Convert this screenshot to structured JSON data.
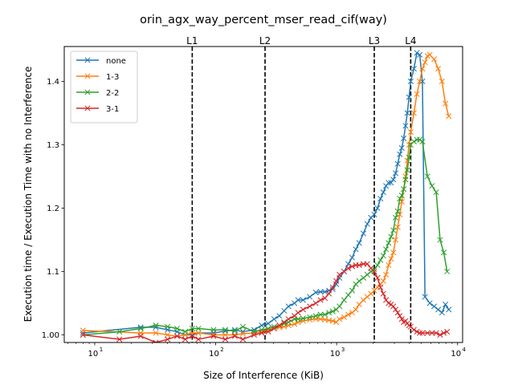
{
  "chart_data": {
    "type": "line",
    "title": "orin_agx_way_percent_mser_read_cif(way)",
    "xlabel": "Size of Interference (KiB)",
    "ylabel": "Execution time / Execution Time with no Interference",
    "xscale": "log",
    "xlim": [
      5.6,
      11000
    ],
    "ylim": [
      0.988,
      1.455
    ],
    "yticks": [
      1.0,
      1.1,
      1.2,
      1.3,
      1.4
    ],
    "ytick_labels": [
      "1.00",
      "1.1",
      "1.2",
      "1.3",
      "1.4"
    ],
    "xticks": [
      10,
      100,
      1000,
      10000
    ],
    "xtick_labels": [
      "10",
      "10",
      "10",
      "10"
    ],
    "xtick_exponents": [
      "1",
      "2",
      "3",
      "4"
    ],
    "grid": false,
    "legend_position": "upper-left",
    "vlines": [
      {
        "label": "L1",
        "x": 64
      },
      {
        "label": "L2",
        "x": 256
      },
      {
        "label": "L3",
        "x": 2048
      },
      {
        "label": "L4",
        "x": 4096
      }
    ],
    "series": [
      {
        "name": "none",
        "color": "#1f77b4",
        "points": [
          [
            8,
            1.003
          ],
          [
            24,
            1.012
          ],
          [
            32,
            1.012
          ],
          [
            40,
            1.008
          ],
          [
            48,
            1.005
          ],
          [
            56,
            1.0
          ],
          [
            64,
            1.0
          ],
          [
            72,
            1.003
          ],
          [
            96,
            1.003
          ],
          [
            120,
            1.006
          ],
          [
            144,
            1.008
          ],
          [
            168,
            1.005
          ],
          [
            208,
            1.008
          ],
          [
            240,
            1.015
          ],
          [
            272,
            1.018
          ],
          [
            304,
            1.025
          ],
          [
            336,
            1.03
          ],
          [
            368,
            1.038
          ],
          [
            400,
            1.045
          ],
          [
            448,
            1.05
          ],
          [
            480,
            1.055
          ],
          [
            528,
            1.055
          ],
          [
            600,
            1.06
          ],
          [
            672,
            1.067
          ],
          [
            736,
            1.068
          ],
          [
            800,
            1.068
          ],
          [
            864,
            1.07
          ],
          [
            928,
            1.072
          ],
          [
            992,
            1.08
          ],
          [
            1056,
            1.09
          ],
          [
            1152,
            1.1
          ],
          [
            1248,
            1.112
          ],
          [
            1344,
            1.122
          ],
          [
            1440,
            1.135
          ],
          [
            1536,
            1.145
          ],
          [
            1664,
            1.16
          ],
          [
            1792,
            1.175
          ],
          [
            1920,
            1.185
          ],
          [
            2048,
            1.19
          ],
          [
            2176,
            1.2
          ],
          [
            2304,
            1.215
          ],
          [
            2432,
            1.225
          ],
          [
            2560,
            1.235
          ],
          [
            2688,
            1.24
          ],
          [
            2816,
            1.24
          ],
          [
            2944,
            1.245
          ],
          [
            3072,
            1.255
          ],
          [
            3200,
            1.27
          ],
          [
            3328,
            1.285
          ],
          [
            3456,
            1.295
          ],
          [
            3584,
            1.31
          ],
          [
            3712,
            1.33
          ],
          [
            3840,
            1.35
          ],
          [
            3968,
            1.375
          ],
          [
            4096,
            1.4
          ],
          [
            4352,
            1.42
          ],
          [
            4608,
            1.445
          ],
          [
            4864,
            1.442
          ],
          [
            5120,
            1.4
          ],
          [
            5376,
            1.06
          ],
          [
            5888,
            1.05
          ],
          [
            6400,
            1.045
          ],
          [
            6912,
            1.04
          ],
          [
            7424,
            1.035
          ],
          [
            7936,
            1.048
          ],
          [
            8448,
            1.04
          ]
        ]
      },
      {
        "name": "1-3",
        "color": "#ff7f0e",
        "points": [
          [
            8,
            1.007
          ],
          [
            24,
            1.003
          ],
          [
            32,
            1.003
          ],
          [
            40,
            1.0
          ],
          [
            48,
            0.998
          ],
          [
            56,
            1.0
          ],
          [
            64,
            1.003
          ],
          [
            72,
            1.003
          ],
          [
            96,
            1.0
          ],
          [
            120,
            1.0
          ],
          [
            144,
            1.0
          ],
          [
            168,
            1.002
          ],
          [
            208,
            1.003
          ],
          [
            240,
            1.005
          ],
          [
            272,
            1.008
          ],
          [
            304,
            1.01
          ],
          [
            336,
            1.012
          ],
          [
            368,
            1.013
          ],
          [
            400,
            1.015
          ],
          [
            448,
            1.017
          ],
          [
            480,
            1.02
          ],
          [
            528,
            1.022
          ],
          [
            600,
            1.024
          ],
          [
            672,
            1.025
          ],
          [
            736,
            1.025
          ],
          [
            800,
            1.024
          ],
          [
            864,
            1.023
          ],
          [
            928,
            1.022
          ],
          [
            992,
            1.02
          ],
          [
            1056,
            1.025
          ],
          [
            1152,
            1.028
          ],
          [
            1248,
            1.032
          ],
          [
            1344,
            1.035
          ],
          [
            1440,
            1.04
          ],
          [
            1536,
            1.048
          ],
          [
            1664,
            1.055
          ],
          [
            1792,
            1.06
          ],
          [
            1920,
            1.065
          ],
          [
            2048,
            1.07
          ],
          [
            2176,
            1.075
          ],
          [
            2304,
            1.08
          ],
          [
            2432,
            1.085
          ],
          [
            2560,
            1.095
          ],
          [
            2688,
            1.11
          ],
          [
            2816,
            1.12
          ],
          [
            2944,
            1.13
          ],
          [
            3072,
            1.15
          ],
          [
            3200,
            1.17
          ],
          [
            3328,
            1.19
          ],
          [
            3456,
            1.21
          ],
          [
            3584,
            1.23
          ],
          [
            3712,
            1.25
          ],
          [
            3840,
            1.275
          ],
          [
            3968,
            1.3
          ],
          [
            4096,
            1.32
          ],
          [
            4352,
            1.35
          ],
          [
            4608,
            1.38
          ],
          [
            4864,
            1.4
          ],
          [
            5120,
            1.42
          ],
          [
            5376,
            1.43
          ],
          [
            5632,
            1.44
          ],
          [
            5888,
            1.442
          ],
          [
            6400,
            1.435
          ],
          [
            6912,
            1.42
          ],
          [
            7424,
            1.4
          ],
          [
            7936,
            1.365
          ],
          [
            8448,
            1.345
          ]
        ]
      },
      {
        "name": "2-2",
        "color": "#2ca02c",
        "points": [
          [
            8,
            1.0
          ],
          [
            16,
            1.005
          ],
          [
            24,
            1.01
          ],
          [
            32,
            1.015
          ],
          [
            40,
            1.013
          ],
          [
            48,
            1.01
          ],
          [
            56,
            1.005
          ],
          [
            64,
            1.01
          ],
          [
            72,
            1.01
          ],
          [
            96,
            1.008
          ],
          [
            120,
            1.008
          ],
          [
            144,
            1.006
          ],
          [
            168,
            1.013
          ],
          [
            208,
            1.005
          ],
          [
            240,
            1.008
          ],
          [
            272,
            1.01
          ],
          [
            304,
            1.013
          ],
          [
            336,
            1.015
          ],
          [
            368,
            1.018
          ],
          [
            400,
            1.02
          ],
          [
            448,
            1.025
          ],
          [
            480,
            1.025
          ],
          [
            528,
            1.026
          ],
          [
            600,
            1.028
          ],
          [
            672,
            1.03
          ],
          [
            736,
            1.032
          ],
          [
            800,
            1.032
          ],
          [
            864,
            1.035
          ],
          [
            928,
            1.037
          ],
          [
            992,
            1.04
          ],
          [
            1056,
            1.045
          ],
          [
            1152,
            1.055
          ],
          [
            1248,
            1.063
          ],
          [
            1344,
            1.07
          ],
          [
            1440,
            1.08
          ],
          [
            1536,
            1.085
          ],
          [
            1664,
            1.09
          ],
          [
            1792,
            1.095
          ],
          [
            1920,
            1.1
          ],
          [
            2048,
            1.103
          ],
          [
            2176,
            1.11
          ],
          [
            2304,
            1.118
          ],
          [
            2432,
            1.125
          ],
          [
            2560,
            1.135
          ],
          [
            2688,
            1.145
          ],
          [
            2816,
            1.155
          ],
          [
            2944,
            1.165
          ],
          [
            3072,
            1.185
          ],
          [
            3200,
            1.195
          ],
          [
            3328,
            1.215
          ],
          [
            3456,
            1.22
          ],
          [
            3584,
            1.23
          ],
          [
            3712,
            1.245
          ],
          [
            3840,
            1.26
          ],
          [
            3968,
            1.28
          ],
          [
            4096,
            1.3
          ],
          [
            4352,
            1.305
          ],
          [
            4608,
            1.308
          ],
          [
            4864,
            1.308
          ],
          [
            5120,
            1.305
          ],
          [
            5632,
            1.25
          ],
          [
            6144,
            1.235
          ],
          [
            6656,
            1.225
          ],
          [
            7168,
            1.15
          ],
          [
            7680,
            1.13
          ],
          [
            8192,
            1.1
          ]
        ]
      },
      {
        "name": "3-1",
        "color": "#d62728",
        "points": [
          [
            8,
            1.0
          ],
          [
            16,
            0.993
          ],
          [
            24,
            0.998
          ],
          [
            32,
            0.988
          ],
          [
            40,
            0.993
          ],
          [
            48,
            0.998
          ],
          [
            56,
            0.993
          ],
          [
            64,
            0.998
          ],
          [
            72,
            0.993
          ],
          [
            96,
            0.998
          ],
          [
            120,
            0.993
          ],
          [
            144,
            0.998
          ],
          [
            168,
            0.993
          ],
          [
            208,
            1.0
          ],
          [
            240,
            1.003
          ],
          [
            272,
            1.005
          ],
          [
            304,
            1.01
          ],
          [
            336,
            1.015
          ],
          [
            368,
            1.02
          ],
          [
            400,
            1.025
          ],
          [
            448,
            1.03
          ],
          [
            480,
            1.035
          ],
          [
            528,
            1.04
          ],
          [
            600,
            1.045
          ],
          [
            672,
            1.05
          ],
          [
            736,
            1.055
          ],
          [
            800,
            1.058
          ],
          [
            864,
            1.065
          ],
          [
            928,
            1.075
          ],
          [
            992,
            1.085
          ],
          [
            1056,
            1.095
          ],
          [
            1152,
            1.1
          ],
          [
            1248,
            1.105
          ],
          [
            1344,
            1.108
          ],
          [
            1440,
            1.11
          ],
          [
            1536,
            1.11
          ],
          [
            1664,
            1.112
          ],
          [
            1792,
            1.112
          ],
          [
            1920,
            1.105
          ],
          [
            2048,
            1.1
          ],
          [
            2176,
            1.09
          ],
          [
            2304,
            1.075
          ],
          [
            2432,
            1.065
          ],
          [
            2560,
            1.055
          ],
          [
            2688,
            1.05
          ],
          [
            2816,
            1.048
          ],
          [
            2944,
            1.045
          ],
          [
            3072,
            1.04
          ],
          [
            3200,
            1.035
          ],
          [
            3328,
            1.03
          ],
          [
            3456,
            1.025
          ],
          [
            3584,
            1.02
          ],
          [
            3712,
            1.022
          ],
          [
            3840,
            1.018
          ],
          [
            3968,
            1.015
          ],
          [
            4096,
            1.013
          ],
          [
            4352,
            1.008
          ],
          [
            4608,
            1.005
          ],
          [
            4864,
            1.003
          ],
          [
            5120,
            1.003
          ],
          [
            5632,
            1.003
          ],
          [
            6144,
            1.003
          ],
          [
            6656,
            1.003
          ],
          [
            7168,
            1.0
          ],
          [
            7680,
            1.003
          ],
          [
            8192,
            1.005
          ]
        ]
      }
    ]
  }
}
